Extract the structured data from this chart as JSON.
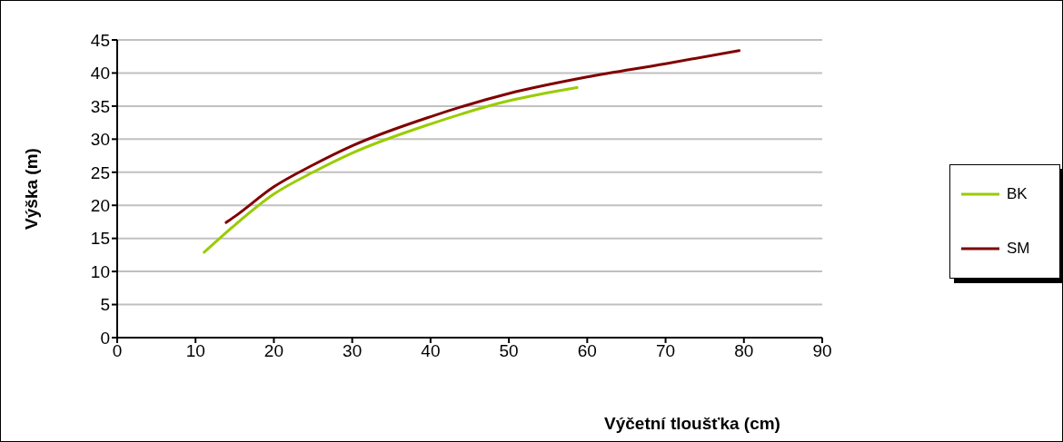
{
  "chart_data": {
    "type": "line",
    "xlabel": "Výčetní tloušťka (cm)",
    "ylabel": "Výška (m)",
    "xlim": [
      0,
      90
    ],
    "xticks": [
      0,
      10,
      20,
      30,
      40,
      50,
      60,
      70,
      80,
      90
    ],
    "ylim": [
      0,
      45
    ],
    "yticks": [
      0,
      5,
      10,
      15,
      20,
      25,
      30,
      35,
      40,
      45
    ],
    "grid": "y",
    "legend": "right",
    "marker": "none",
    "line_style": "solid",
    "series": [
      {
        "name": "BK",
        "color": "#99cc00",
        "x": [
          11.1,
          15,
          20,
          25,
          30,
          40,
          50,
          58.7
        ],
        "values": [
          12.9,
          17.0,
          21.7,
          25.0,
          27.9,
          32.3,
          35.8,
          37.8
        ]
      },
      {
        "name": "SM",
        "color": "#800000",
        "x": [
          13.9,
          15,
          20,
          25,
          30,
          40,
          50,
          60,
          70,
          79.4
        ],
        "values": [
          17.4,
          18.3,
          22.8,
          26.1,
          29.0,
          33.4,
          36.9,
          39.4,
          41.4,
          43.4
        ]
      }
    ]
  }
}
